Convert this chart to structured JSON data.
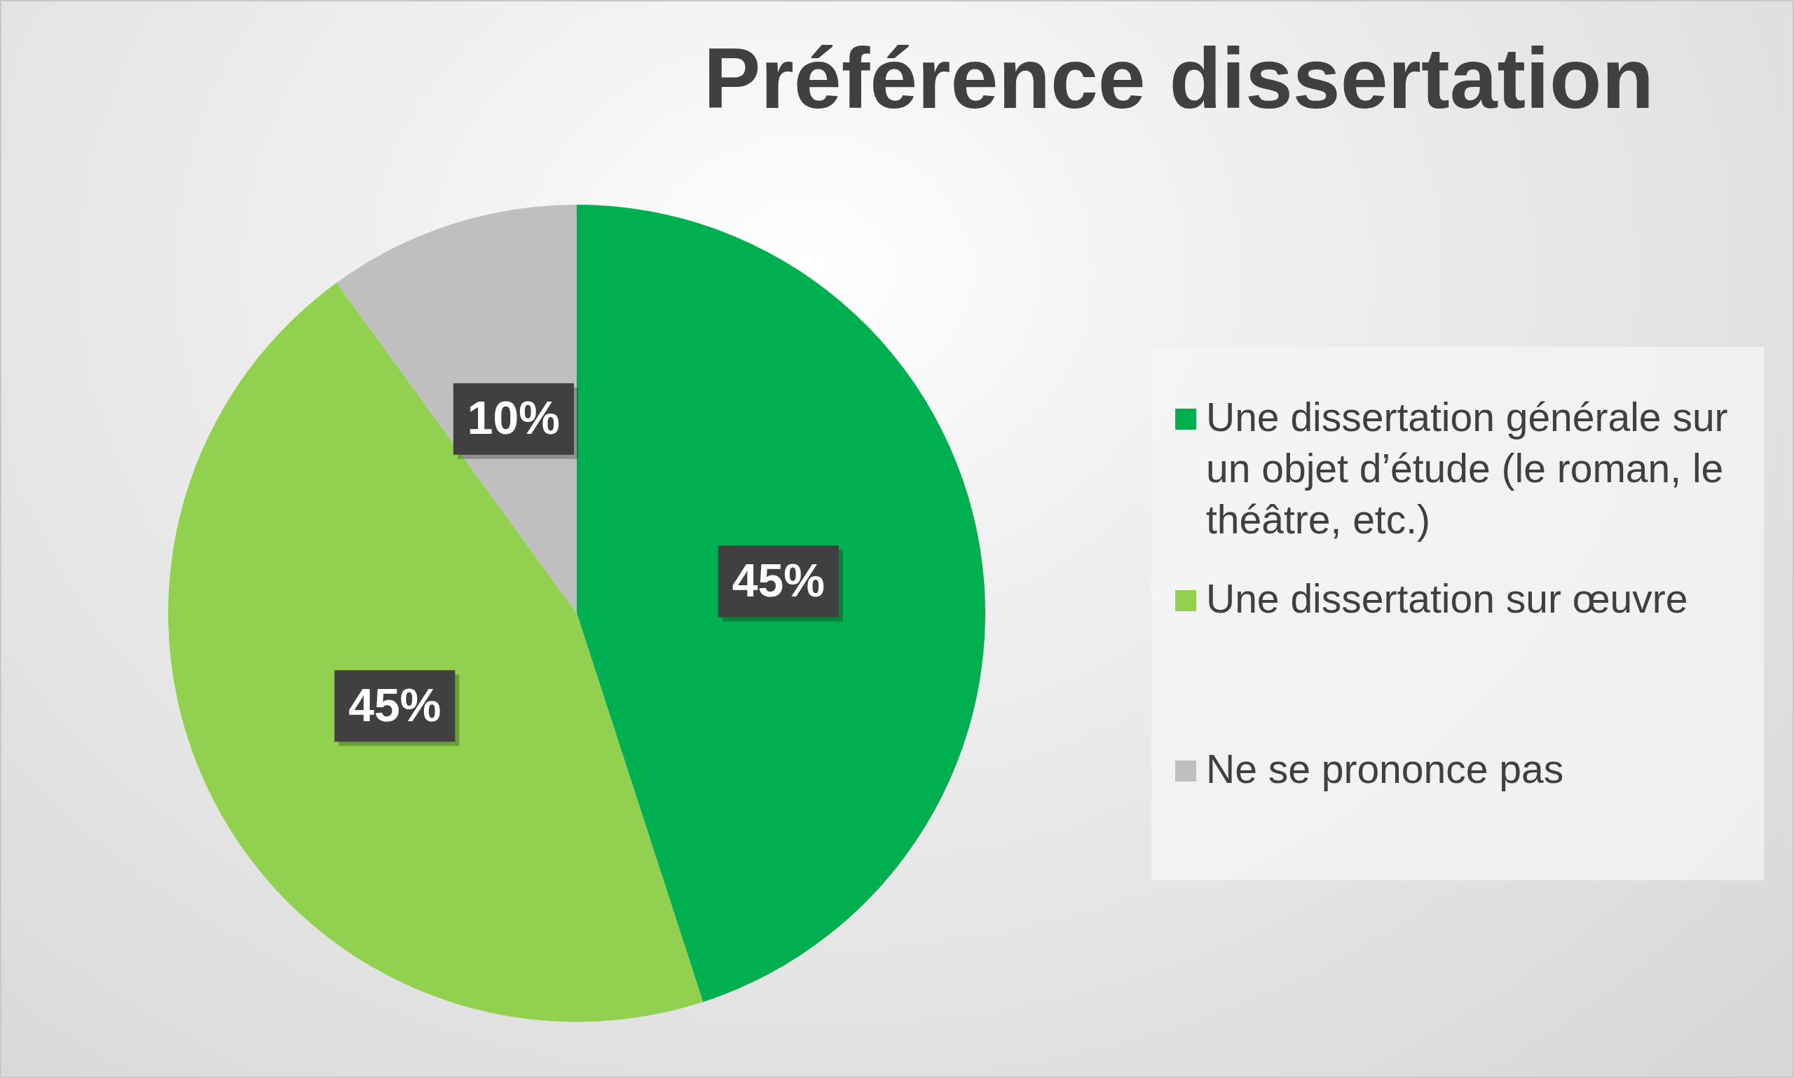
{
  "chart_data": {
    "type": "pie",
    "title": "Préférence dissertation",
    "categories": [
      "Une dissertation générale sur un objet d’étude (le roman, le théâtre, etc.)",
      "Une dissertation sur œuvre",
      "Ne se prononce pas"
    ],
    "values": [
      45,
      45,
      10
    ],
    "colors": [
      "#00b050",
      "#92d050",
      "#bfbfbf"
    ],
    "value_labels": [
      "45%",
      "45%",
      "10%"
    ],
    "legend": "right"
  }
}
